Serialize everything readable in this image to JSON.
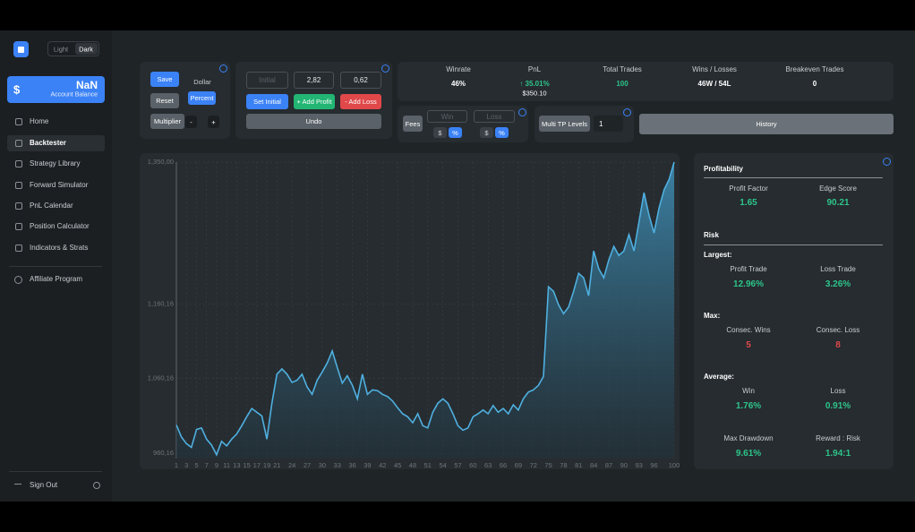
{
  "sidebar": {
    "theme": [
      "Light",
      "Dark"
    ],
    "balance": {
      "symbol": "$",
      "value": "NaN",
      "label": "Account Balance"
    },
    "nav": [
      "Home",
      "Backtester",
      "Strategy Library",
      "Forward Simulator",
      "PnL Calendar",
      "Position Calculator",
      "Indicators & Strats"
    ],
    "affiliate": "Affiliate Program",
    "sign_out": "Sign Out"
  },
  "controls": {
    "save": "Save",
    "dollar": "Dollar",
    "reset": "Reset",
    "percent": "Percent",
    "multiplier": "Multiplier",
    "minus": "-",
    "plus": "+",
    "initial_placeholder": "Initial",
    "profit_input": "2,82",
    "loss_input": "0,62",
    "set_initial": "Set Initial",
    "add_profit": "+ Add Profit",
    "add_loss": "- Add Loss",
    "undo": "Undo",
    "fees": "Fees",
    "fee_win_placeholder": "Win",
    "fee_loss_placeholder": "Loss",
    "fee_win_units": [
      "$",
      "%"
    ],
    "fee_loss_units": [
      "$",
      "%"
    ],
    "multi_tp": "Multi TP Levels",
    "tp_levels": "1",
    "history": "History"
  },
  "stats": [
    {
      "label": "Winrate",
      "value": "46%"
    },
    {
      "label": "PnL",
      "value": "↑ 35.01%",
      "sub": "$350.10"
    },
    {
      "label": "Total Trades",
      "value": "100"
    },
    {
      "label": "Wins / Losses",
      "value": "46W / 54L"
    },
    {
      "label": "Breakeven Trades",
      "value": "0"
    }
  ],
  "chart_data": {
    "type": "area",
    "color": "#4fb0e0",
    "grid": true,
    "x": [
      1,
      2,
      3,
      4,
      5,
      6,
      7,
      8,
      9,
      10,
      11,
      12,
      13,
      14,
      15,
      16,
      17,
      18,
      19,
      20,
      21,
      22,
      23,
      24,
      25,
      26,
      27,
      28,
      29,
      30,
      31,
      32,
      33,
      34,
      35,
      36,
      37,
      38,
      39,
      40,
      41,
      42,
      43,
      44,
      45,
      46,
      47,
      48,
      49,
      50,
      51,
      52,
      53,
      54,
      55,
      56,
      57,
      58,
      59,
      60,
      61,
      62,
      63,
      64,
      65,
      66,
      67,
      68,
      69,
      70,
      71,
      72,
      73,
      74,
      75,
      76,
      77,
      78,
      79,
      80,
      81,
      82,
      83,
      84,
      85,
      86,
      87,
      88,
      89,
      90,
      91,
      92,
      93,
      94,
      95,
      96,
      97,
      98,
      99,
      100
    ],
    "values": [
      998,
      982,
      973,
      968,
      992,
      994,
      979,
      971,
      958,
      976,
      970,
      979,
      986,
      997,
      1009,
      1020,
      1015,
      1010,
      979,
      1027,
      1066,
      1073,
      1066,
      1055,
      1058,
      1066,
      1049,
      1039,
      1058,
      1069,
      1081,
      1097,
      1075,
      1054,
      1064,
      1051,
      1033,
      1066,
      1039,
      1045,
      1044,
      1039,
      1036,
      1030,
      1021,
      1013,
      1009,
      1001,
      1013,
      997,
      994,
      1015,
      1027,
      1033,
      1027,
      1013,
      997,
      991,
      994,
      1009,
      1013,
      1018,
      1013,
      1024,
      1015,
      1020,
      1013,
      1025,
      1018,
      1033,
      1042,
      1045,
      1051,
      1063,
      1183,
      1177,
      1159,
      1147,
      1156,
      1177,
      1201,
      1195,
      1171,
      1231,
      1207,
      1195,
      1219,
      1237,
      1225,
      1231,
      1253,
      1231,
      1270,
      1309,
      1279,
      1255,
      1289,
      1313,
      1327,
      1350
    ],
    "xlim": [
      1,
      100
    ],
    "xticks": [
      1,
      3,
      5,
      7,
      9,
      11,
      13,
      15,
      17,
      19,
      21,
      24,
      27,
      30,
      33,
      36,
      39,
      42,
      45,
      48,
      51,
      54,
      57,
      60,
      63,
      66,
      69,
      72,
      75,
      78,
      81,
      84,
      87,
      90,
      93,
      96,
      100
    ],
    "ylim": [
      953,
      1350
    ],
    "yticks": [
      {
        "value": 960.16,
        "label": "960,16"
      },
      {
        "value": 1060.16,
        "label": "1,060,16"
      },
      {
        "value": 1160.16,
        "label": "1,160,16"
      },
      {
        "value": 1350,
        "label": "1,350,00"
      }
    ]
  },
  "metrics": {
    "profitability": {
      "title": "Profitability",
      "items": [
        {
          "label": "Profit Factor",
          "value": "1.65"
        },
        {
          "label": "Edge Score",
          "value": "90.21"
        }
      ]
    },
    "risk": {
      "title": "Risk",
      "groups": [
        {
          "title": "Largest:",
          "items": [
            {
              "label": "Profit Trade",
              "value": "12.96%"
            },
            {
              "label": "Loss Trade",
              "value": "3.26%"
            }
          ]
        },
        {
          "title": "Max:",
          "items": [
            {
              "label": "Consec. Wins",
              "value": "5"
            },
            {
              "label": "Consec. Loss",
              "value": "8"
            }
          ]
        },
        {
          "title": "Average:",
          "items": [
            {
              "label": "Win",
              "value": "1.76%"
            },
            {
              "label": "Loss",
              "value": "0.91%"
            }
          ]
        },
        {
          "items": [
            {
              "label": "Max Drawdown",
              "value": "9.61%"
            },
            {
              "label": "Reward : Risk",
              "value": "1.94:1"
            }
          ]
        }
      ]
    }
  }
}
